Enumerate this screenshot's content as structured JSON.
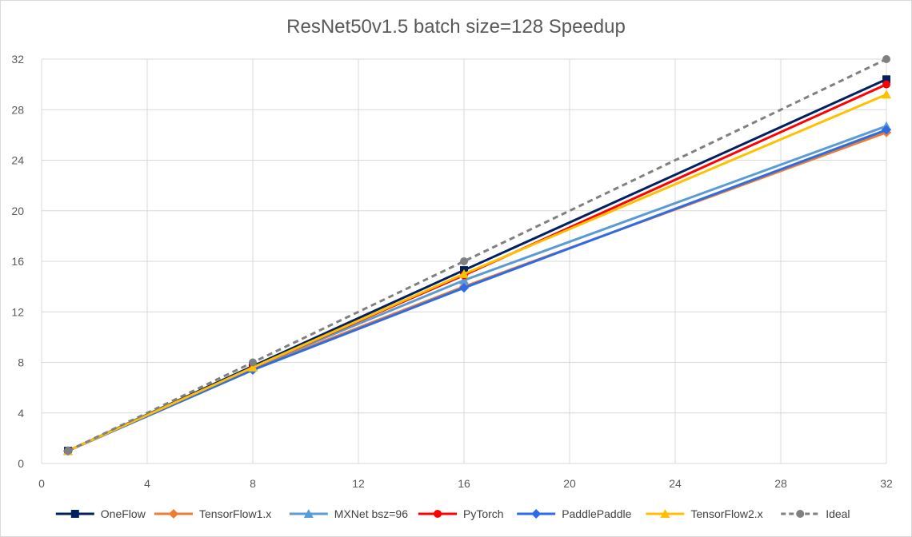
{
  "chart_data": {
    "type": "line",
    "title": "ResNet50v1.5 batch size=128 Speedup",
    "xlabel": "",
    "ylabel": "",
    "xlim": [
      0,
      32
    ],
    "ylim": [
      0,
      32
    ],
    "xticks": [
      0,
      4,
      8,
      12,
      16,
      20,
      24,
      28,
      32
    ],
    "yticks": [
      0,
      4,
      8,
      12,
      16,
      20,
      24,
      28,
      32
    ],
    "grid": true,
    "legend_position": "bottom",
    "x": [
      1,
      8,
      16,
      32
    ],
    "series": [
      {
        "name": "OneFlow",
        "values": [
          1,
          7.7,
          15.3,
          30.4
        ],
        "color": "#002060",
        "marker": "square",
        "dash": false
      },
      {
        "name": "TensorFlow1.x",
        "values": [
          1,
          7.5,
          14.0,
          26.2
        ],
        "color": "#ed7d31",
        "marker": "diamond",
        "dash": false
      },
      {
        "name": "MXNet bsz=96",
        "values": [
          1,
          7.6,
          14.5,
          26.7
        ],
        "color": "#5b9bd5",
        "marker": "triangle",
        "dash": false
      },
      {
        "name": "PyTorch",
        "values": [
          1,
          7.6,
          14.9,
          30.0
        ],
        "color": "#ff0000",
        "marker": "circle",
        "dash": false
      },
      {
        "name": "PaddlePaddle",
        "values": [
          1,
          7.4,
          13.9,
          26.4
        ],
        "color": "#2e6be6",
        "marker": "diamond",
        "dash": false
      },
      {
        "name": "TensorFlow2.x",
        "values": [
          1,
          7.6,
          15.0,
          29.2
        ],
        "color": "#ffc000",
        "marker": "triangle",
        "dash": false
      },
      {
        "name": "Ideal",
        "values": [
          1,
          8,
          16,
          32
        ],
        "color": "#808080",
        "marker": "circle",
        "dash": true
      }
    ]
  }
}
